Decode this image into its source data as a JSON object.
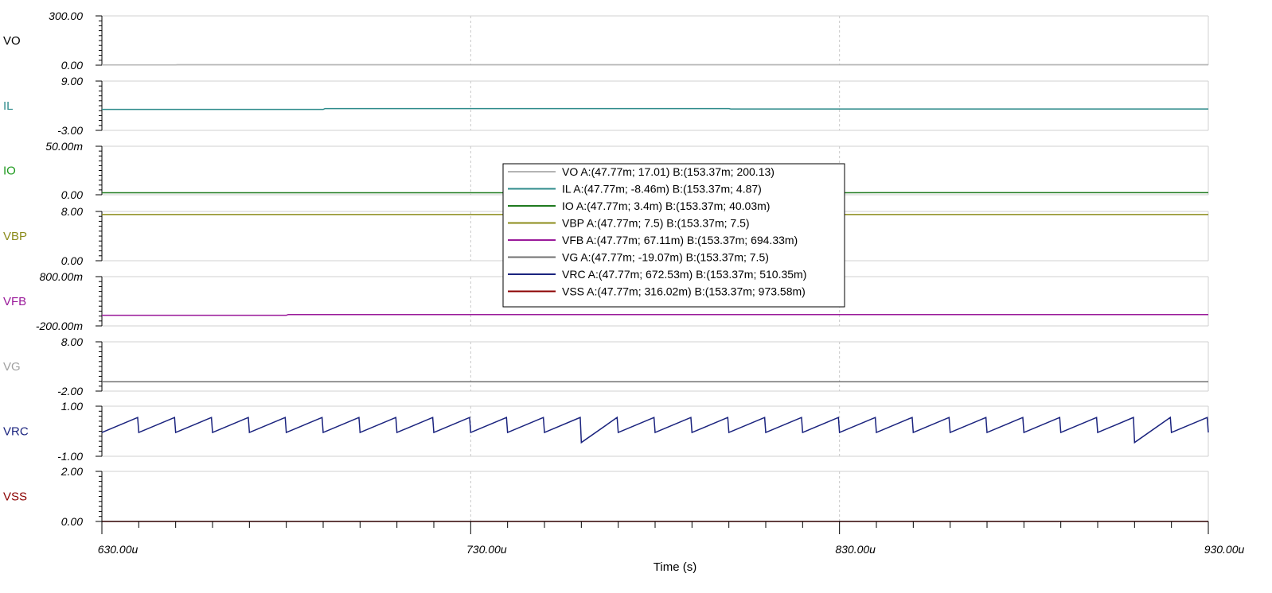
{
  "chart_data": {
    "type": "line",
    "xlabel": "Time (s)",
    "x_ticks": [
      "630.00u",
      "730.00u",
      "830.00u",
      "930.00u"
    ],
    "xlim": [
      630,
      930
    ],
    "x_unit": "u",
    "grid": "vertical dashed at major x ticks",
    "legend_placement": "center",
    "panels": [
      {
        "name": "VO",
        "color": "#b4b4b4",
        "label_color": "#000000",
        "ytop": "300.00",
        "ybottom": "0.00",
        "ylim": [
          0,
          300
        ],
        "values": [
          [
            630,
            2
          ],
          [
            650,
            2
          ],
          [
            650.5,
            3
          ],
          [
            930,
            3
          ]
        ]
      },
      {
        "name": "IL",
        "color": "#2e8b8b",
        "label_color": "#2e8b8b",
        "ytop": "9.00",
        "ybottom": "-3.00",
        "ylim": [
          -3,
          9
        ],
        "values": [
          [
            630,
            2.1
          ],
          [
            690,
            2.1
          ],
          [
            690.5,
            2.3
          ],
          [
            800,
            2.3
          ],
          [
            800.5,
            2.2
          ],
          [
            930,
            2.2
          ]
        ]
      },
      {
        "name": "IO",
        "color": "#1f7a1f",
        "label_color": "#1f9a1f",
        "ytop": "50.00m",
        "ybottom": "0.00",
        "ylim": [
          0,
          0.05
        ],
        "values": [
          [
            630,
            0.0021
          ],
          [
            830,
            0.0021
          ],
          [
            841,
            0.0022
          ],
          [
            930,
            0.0022
          ]
        ]
      },
      {
        "name": "VBP",
        "color": "#8b8b1a",
        "label_color": "#8b8b1a",
        "ytop": "8.00",
        "ybottom": "0.00",
        "ylim": [
          0,
          8
        ],
        "values": [
          [
            630,
            7.5
          ],
          [
            930,
            7.5
          ]
        ]
      },
      {
        "name": "VFB",
        "color": "#9a1a9a",
        "label_color": "#9a1a9a",
        "ytop": "800.00m",
        "ybottom": "-200.00m",
        "ylim": [
          -0.2,
          0.8
        ],
        "values": [
          [
            630,
            0.015
          ],
          [
            680,
            0.015
          ],
          [
            680.5,
            0.03
          ],
          [
            930,
            0.03
          ]
        ]
      },
      {
        "name": "VG",
        "color": "#707070",
        "label_color": "#a0a0a0",
        "ytop": "8.00",
        "ybottom": "-2.00",
        "ylim": [
          -2,
          8
        ],
        "values": [
          [
            630,
            -0.1
          ],
          [
            930,
            -0.1
          ]
        ]
      },
      {
        "name": "VRC",
        "color": "#1a237e",
        "label_color": "#1a237e",
        "ytop": "1.00",
        "ybottom": "-1.00",
        "ylim": [
          -1,
          1
        ],
        "sawtooth": {
          "period": 10,
          "min": -0.05,
          "max": 0.55,
          "fall": 0.3,
          "deep_at": [
            764,
            912
          ],
          "deep_min": -0.45
        }
      },
      {
        "name": "VSS",
        "color": "#8b0000",
        "label_color": "#8b0000",
        "ytop": "2.00",
        "ybottom": "0.00",
        "ylim": [
          0,
          2
        ],
        "values": [
          [
            630,
            0
          ],
          [
            930,
            0
          ]
        ]
      }
    ],
    "legend": [
      {
        "name": "VO",
        "text": "A:(47.77m; 17.01) B:(153.37m; 200.13)"
      },
      {
        "name": "IL",
        "text": "A:(47.77m; -8.46m) B:(153.37m; 4.87)"
      },
      {
        "name": "IO",
        "text": "A:(47.77m; 3.4m) B:(153.37m; 40.03m)"
      },
      {
        "name": "VBP",
        "text": "A:(47.77m; 7.5) B:(153.37m; 7.5)"
      },
      {
        "name": "VFB",
        "text": "A:(47.77m; 67.11m) B:(153.37m; 694.33m)"
      },
      {
        "name": "VG",
        "text": "A:(47.77m; -19.07m) B:(153.37m; 7.5)"
      },
      {
        "name": "VRC",
        "text": "A:(47.77m; 672.53m) B:(153.37m; 510.35m)"
      },
      {
        "name": "VSS",
        "text": "A:(47.77m; 316.02m) B:(153.37m; 973.58m)"
      }
    ]
  }
}
